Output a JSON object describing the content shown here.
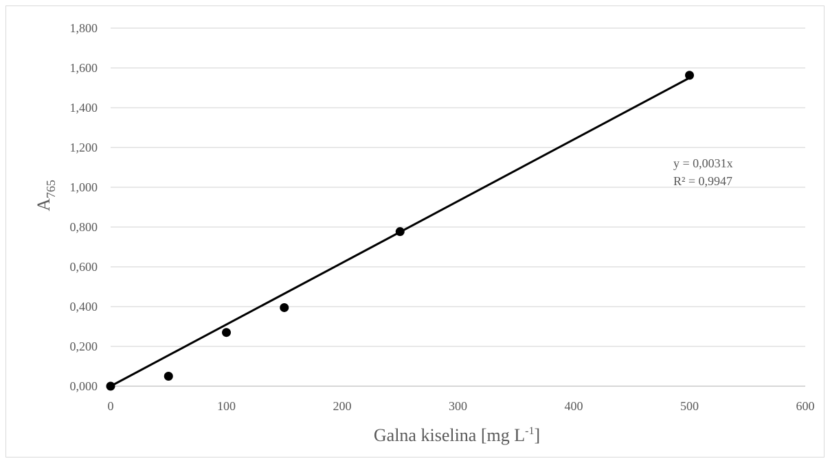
{
  "chart_data": {
    "type": "scatter",
    "title": "",
    "xlabel": "Galna kiselina [mg L",
    "xlabel_sup": "-1",
    "xlabel_end": "]",
    "ylabel": "A",
    "ylabel_sub": "765",
    "xlim": [
      0,
      600
    ],
    "ylim": [
      0,
      1.8
    ],
    "x_ticks": [
      0,
      100,
      200,
      300,
      400,
      500,
      600
    ],
    "x_tick_labels": [
      "0",
      "100",
      "200",
      "300",
      "400",
      "500",
      "600"
    ],
    "y_ticks": [
      0,
      0.2,
      0.4,
      0.6,
      0.8,
      1.0,
      1.2,
      1.4,
      1.6,
      1.8
    ],
    "y_tick_labels": [
      "0,000",
      "0,200",
      "0,400",
      "0,600",
      "0,800",
      "1,000",
      "1,200",
      "1,400",
      "1,600",
      "1,800"
    ],
    "grid": "horizontal",
    "series": [
      {
        "x": [
          0,
          50,
          100,
          150,
          250,
          500
        ],
        "y": [
          0.0,
          0.05,
          0.27,
          0.395,
          0.777,
          1.563
        ],
        "color": "#000000"
      }
    ],
    "trendline": {
      "slope": 0.0031,
      "x_range": [
        0,
        500
      ],
      "color": "#000000",
      "equation": "y = 0,0031x",
      "r_squared": "R² = 0,9947"
    }
  }
}
